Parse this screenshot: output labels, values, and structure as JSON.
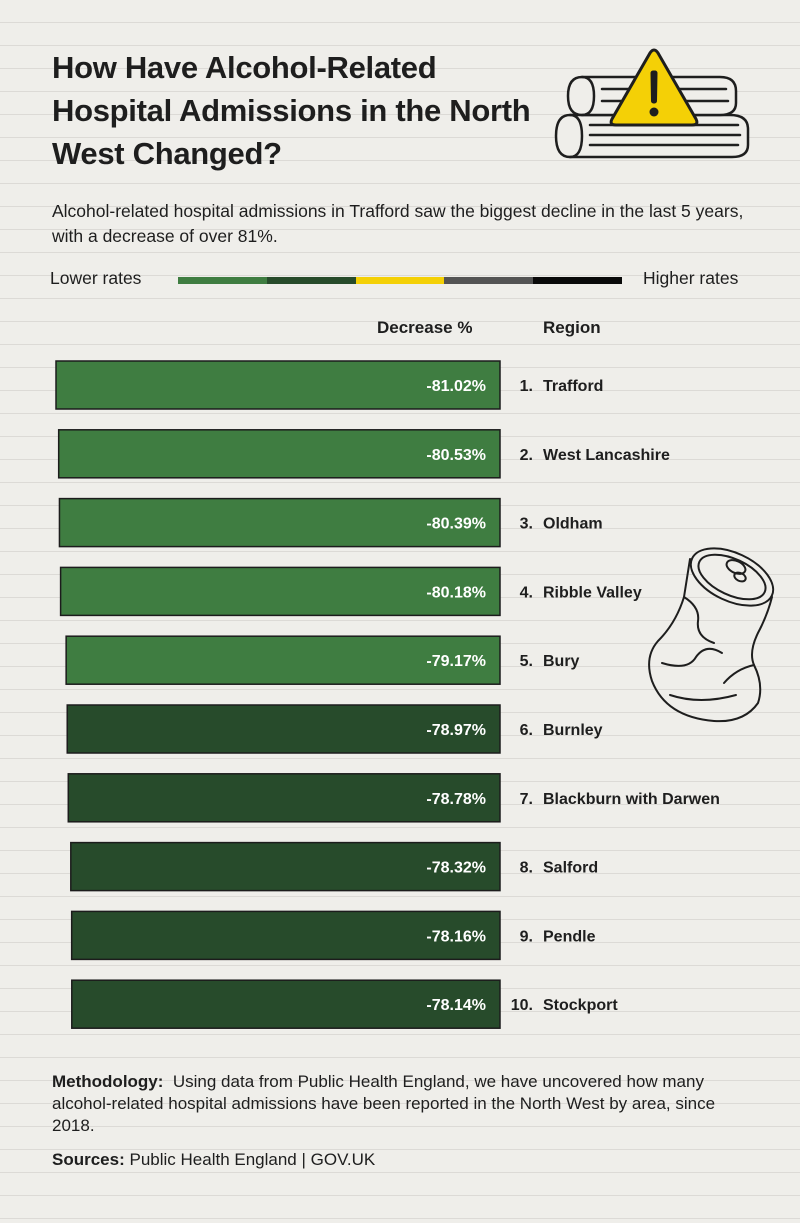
{
  "title": "How Have Alcohol-Related Hospital Admissions in the North West Changed?",
  "subtitle": "Alcohol-related hospital admissions in Trafford saw the biggest decline in the last 5 years, with a decrease of over 81%.",
  "legend": {
    "low_label": "Lower rates",
    "high_label": "Higher rates",
    "scale_colors": [
      "#3f7d41",
      "#274b2b",
      "#f4d006",
      "#545454",
      "#0a0a0a"
    ]
  },
  "columns": {
    "decrease": "Decrease %",
    "region": "Region"
  },
  "colors": {
    "light_green": "#3f7d41",
    "dark_green": "#274b2b",
    "bar_border": "#1c1c1c",
    "background": "#efeeea"
  },
  "icons": [
    "warning-books-icon",
    "crushed-can-icon"
  ],
  "chart_data": {
    "type": "bar",
    "orientation": "horizontal",
    "title": "How Have Alcohol-Related Hospital Admissions in the North West Changed?",
    "categories": [
      "Trafford",
      "West Lancashire",
      "Oldham",
      "Ribble Valley",
      "Bury",
      "Burnley",
      "Blackburn with Darwen",
      "Salford",
      "Pendle",
      "Stockport"
    ],
    "ranks": [
      "1.",
      "2.",
      "3.",
      "4.",
      "5.",
      "6.",
      "7.",
      "8.",
      "9.",
      "10."
    ],
    "values": [
      -81.02,
      -80.53,
      -80.39,
      -80.18,
      -79.17,
      -78.97,
      -78.78,
      -78.32,
      -78.16,
      -78.14
    ],
    "labels": [
      "-81.02%",
      "-80.53%",
      "-80.39%",
      "-80.18%",
      "-79.17%",
      "-78.97%",
      "-78.78%",
      "-78.32%",
      "-78.16%",
      "-78.14%"
    ],
    "bar_colors": [
      "light_green",
      "light_green",
      "light_green",
      "light_green",
      "light_green",
      "dark_green",
      "dark_green",
      "dark_green",
      "dark_green",
      "dark_green"
    ],
    "xlabel": "Decrease %",
    "ylabel": "Region"
  },
  "methodology": {
    "label": "Methodology:",
    "text": "Using data from Public Health England, we have uncovered how many alcohol-related hospital admissions have been reported in the North West by area, since 2018."
  },
  "sources": {
    "label": "Sources:",
    "text": "Public Health England | GOV.UK"
  }
}
